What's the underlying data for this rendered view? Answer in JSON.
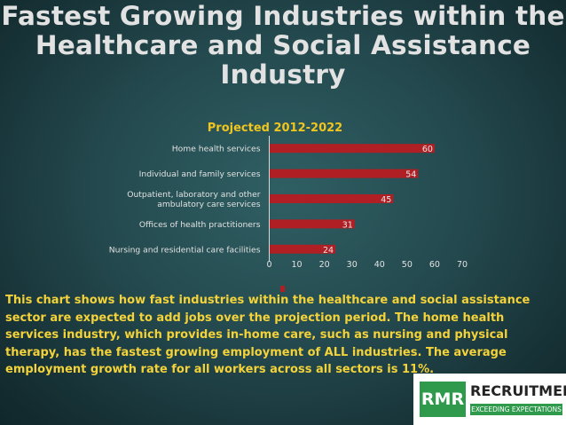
{
  "title_lines": [
    "Fastest Growing Industries within the",
    "Healthcare and Social Assistance",
    "Industry"
  ],
  "description": "This chart shows how fast industries within the healthcare and social assistance sector are expected to add jobs over the projection period. The home health services industry, which provides in-home care, such as nursing and physical therapy, has the fastest growing employment of ALL industries. The average employment growth rate for all workers across all sectors is 11%.",
  "logo": {
    "mark": "RMR",
    "name": "RECRUITMENT",
    "tagline": "EXCEEDING EXPECTATIONS"
  },
  "colors": {
    "bar": "#b01f24",
    "title": "#e2e2e2",
    "chart_title": "#f0c51e",
    "description": "#f3d23a",
    "axis": "#d9d9d9",
    "logo_green": "#2f9a4b"
  },
  "chart_data": {
    "type": "bar",
    "orientation": "horizontal",
    "title": "Projected 2012-2022",
    "categories": [
      "Home health services",
      "Individual and family services",
      "Outpatient, laboratory and other ambulatory care services",
      "Offices of health practitioners",
      "Nursing and residential care facilities"
    ],
    "category_lines": [
      [
        "Home health services"
      ],
      [
        "Individual and family services"
      ],
      [
        "Outpatient, laboratory and other",
        "ambulatory care services"
      ],
      [
        "Offices of health practitioners"
      ],
      [
        "Nursing and residential care facilities"
      ]
    ],
    "values": [
      60,
      54,
      45,
      31,
      24
    ],
    "xlim": [
      0,
      70
    ],
    "xticks": [
      0,
      10,
      20,
      30,
      40,
      50,
      60,
      70
    ],
    "grid": false,
    "data_labels": true,
    "legend": "bottom"
  }
}
